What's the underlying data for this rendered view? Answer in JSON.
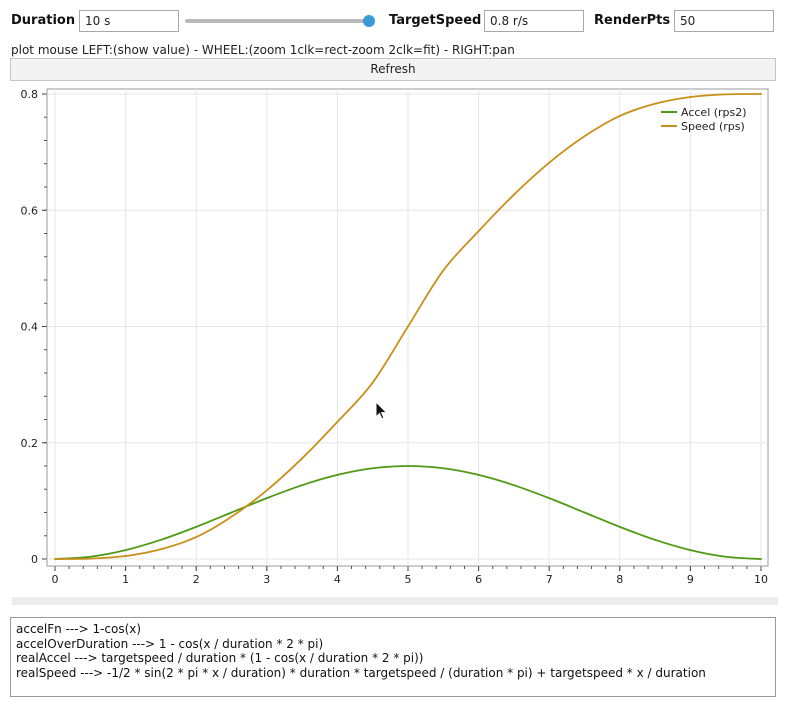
{
  "controls": {
    "duration_label": "Duration",
    "duration_value": "10 s",
    "duration_slider_level": 1.0,
    "targetspeed_label": "TargetSpeed",
    "targetspeed_value": "0.8 r/s",
    "renderpts_label": "RenderPts",
    "renderpts_value": "50"
  },
  "hint": "plot mouse LEFT:(show value) - WHEEL:(zoom 1clk=rect-zoom 2clk=fit) - RIGHT:pan",
  "refresh_label": "Refresh",
  "colors": {
    "accel": "#4f9a13",
    "speed": "#c8901a",
    "slider_knob": "#3a9ad9"
  },
  "chart_data": {
    "type": "line",
    "xlim": [
      0,
      10
    ],
    "ylim": [
      0,
      0.8
    ],
    "x_ticks": [
      0,
      1,
      2,
      3,
      4,
      5,
      6,
      7,
      8,
      9,
      10
    ],
    "x_tick_labels": [
      "0",
      "1",
      "2",
      "3",
      "4",
      "5",
      "6",
      "7",
      "8",
      "9",
      "10"
    ],
    "y_ticks": [
      0,
      0.2,
      0.4,
      0.6,
      0.8
    ],
    "y_tick_labels": [
      "0",
      "0.2",
      "0.4",
      "0.6",
      "0.8"
    ],
    "grid": true,
    "legend_position": "top-right",
    "x": [
      0,
      0.5,
      1,
      1.5,
      2,
      2.5,
      3,
      3.5,
      4,
      4.5,
      5,
      5.5,
      6,
      6.5,
      7,
      7.5,
      8,
      8.5,
      9,
      9.5,
      10
    ],
    "series": [
      {
        "name": "Accel (rps2)",
        "color": "#4f9a13",
        "values": [
          0,
          0.0039,
          0.0153,
          0.033,
          0.0553,
          0.08,
          0.1047,
          0.127,
          0.1447,
          0.1561,
          0.16,
          0.1561,
          0.1447,
          0.127,
          0.1047,
          0.08,
          0.0553,
          0.033,
          0.0153,
          0.0039,
          0
        ]
      },
      {
        "name": "Speed (rps)",
        "color": "#c8901a",
        "values": [
          0,
          0.0006,
          0.0051,
          0.0167,
          0.0377,
          0.0727,
          0.1181,
          0.1732,
          0.2359,
          0.3036,
          0.4,
          0.4964,
          0.5641,
          0.6268,
          0.6819,
          0.7273,
          0.7623,
          0.7833,
          0.7949,
          0.7994,
          0.8
        ]
      }
    ]
  },
  "formulas": [
    "accelFn ---> 1-cos(x)",
    "accelOverDuration ---> 1 - cos(x / duration * 2 * pi)",
    "realAccel ---> targetspeed / duration * (1 - cos(x / duration * 2 * pi))",
    "realSpeed ---> -1/2 * sin(2 * pi * x / duration) * duration * targetspeed / (duration * pi) + targetspeed * x / duration"
  ]
}
